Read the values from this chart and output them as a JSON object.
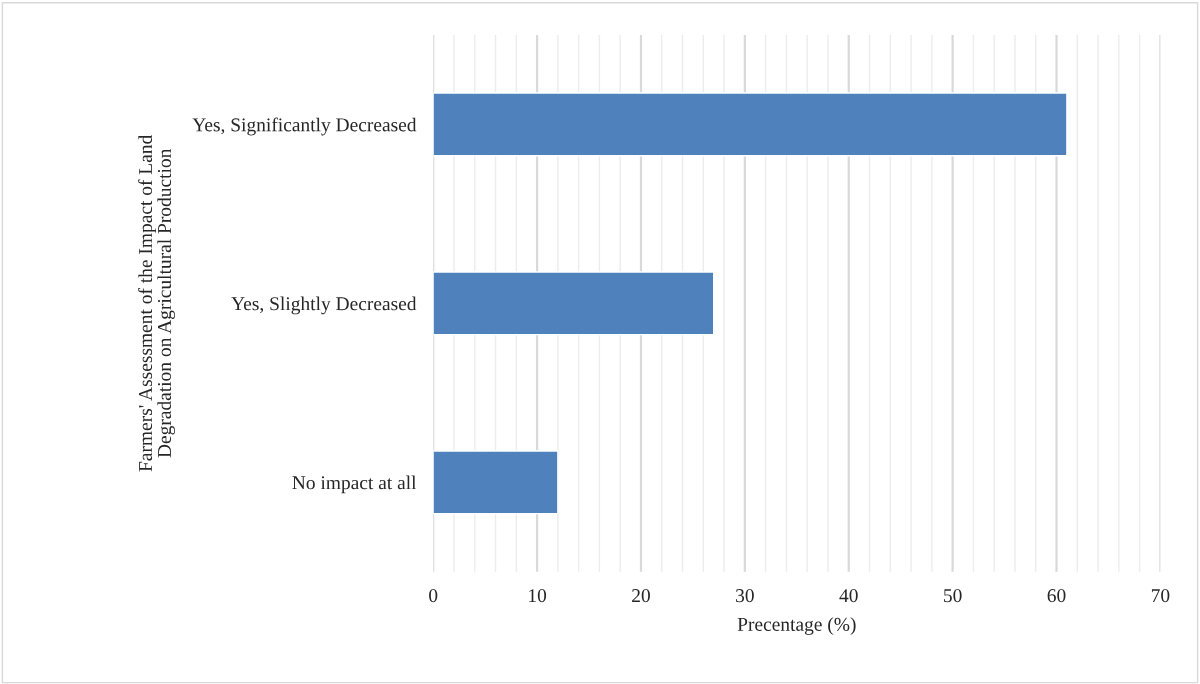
{
  "chart_data": {
    "type": "bar",
    "orientation": "horizontal",
    "categories": [
      "Yes, Significantly Decreased",
      "Yes, Slightly Decreased",
      "No impact at all"
    ],
    "values": [
      61,
      27,
      12
    ],
    "color": "#4f81bd",
    "xlabel": "Precentage (%)",
    "ylabel": "Farmers' Assessment of the Impact of Land\nDegradation on Agricultural Production",
    "xlim": [
      0,
      70
    ],
    "xticks": [
      0,
      {
        "value": 2,
        "label": null
      },
      {
        "value": 4,
        "label": null
      },
      {
        "value": 6,
        "label": null
      },
      {
        "value": 8,
        "label": null
      },
      10,
      {
        "value": 12,
        "label": null
      },
      {
        "value": 14,
        "label": null
      },
      {
        "value": 16,
        "label": null
      },
      {
        "value": 18,
        "label": null
      },
      20,
      {
        "value": 22,
        "label": null
      },
      {
        "value": 24,
        "label": null
      },
      {
        "value": 26,
        "label": null
      },
      {
        "value": 28,
        "label": null
      },
      30,
      {
        "value": 32,
        "label": null
      },
      {
        "value": 34,
        "label": null
      },
      {
        "value": 36,
        "label": null
      },
      {
        "value": 38,
        "label": null
      },
      40,
      {
        "value": 42,
        "label": null
      },
      {
        "value": 44,
        "label": null
      },
      {
        "value": 46,
        "label": null
      },
      {
        "value": 48,
        "label": null
      },
      50,
      {
        "value": 52,
        "label": null
      },
      {
        "value": 54,
        "label": null
      },
      {
        "value": 56,
        "label": null
      },
      {
        "value": 58,
        "label": null
      },
      60,
      {
        "value": 62,
        "label": null
      },
      {
        "value": 64,
        "label": null
      },
      {
        "value": 66,
        "label": null
      },
      {
        "value": 68,
        "label": null
      },
      70
    ],
    "grid": "x"
  }
}
